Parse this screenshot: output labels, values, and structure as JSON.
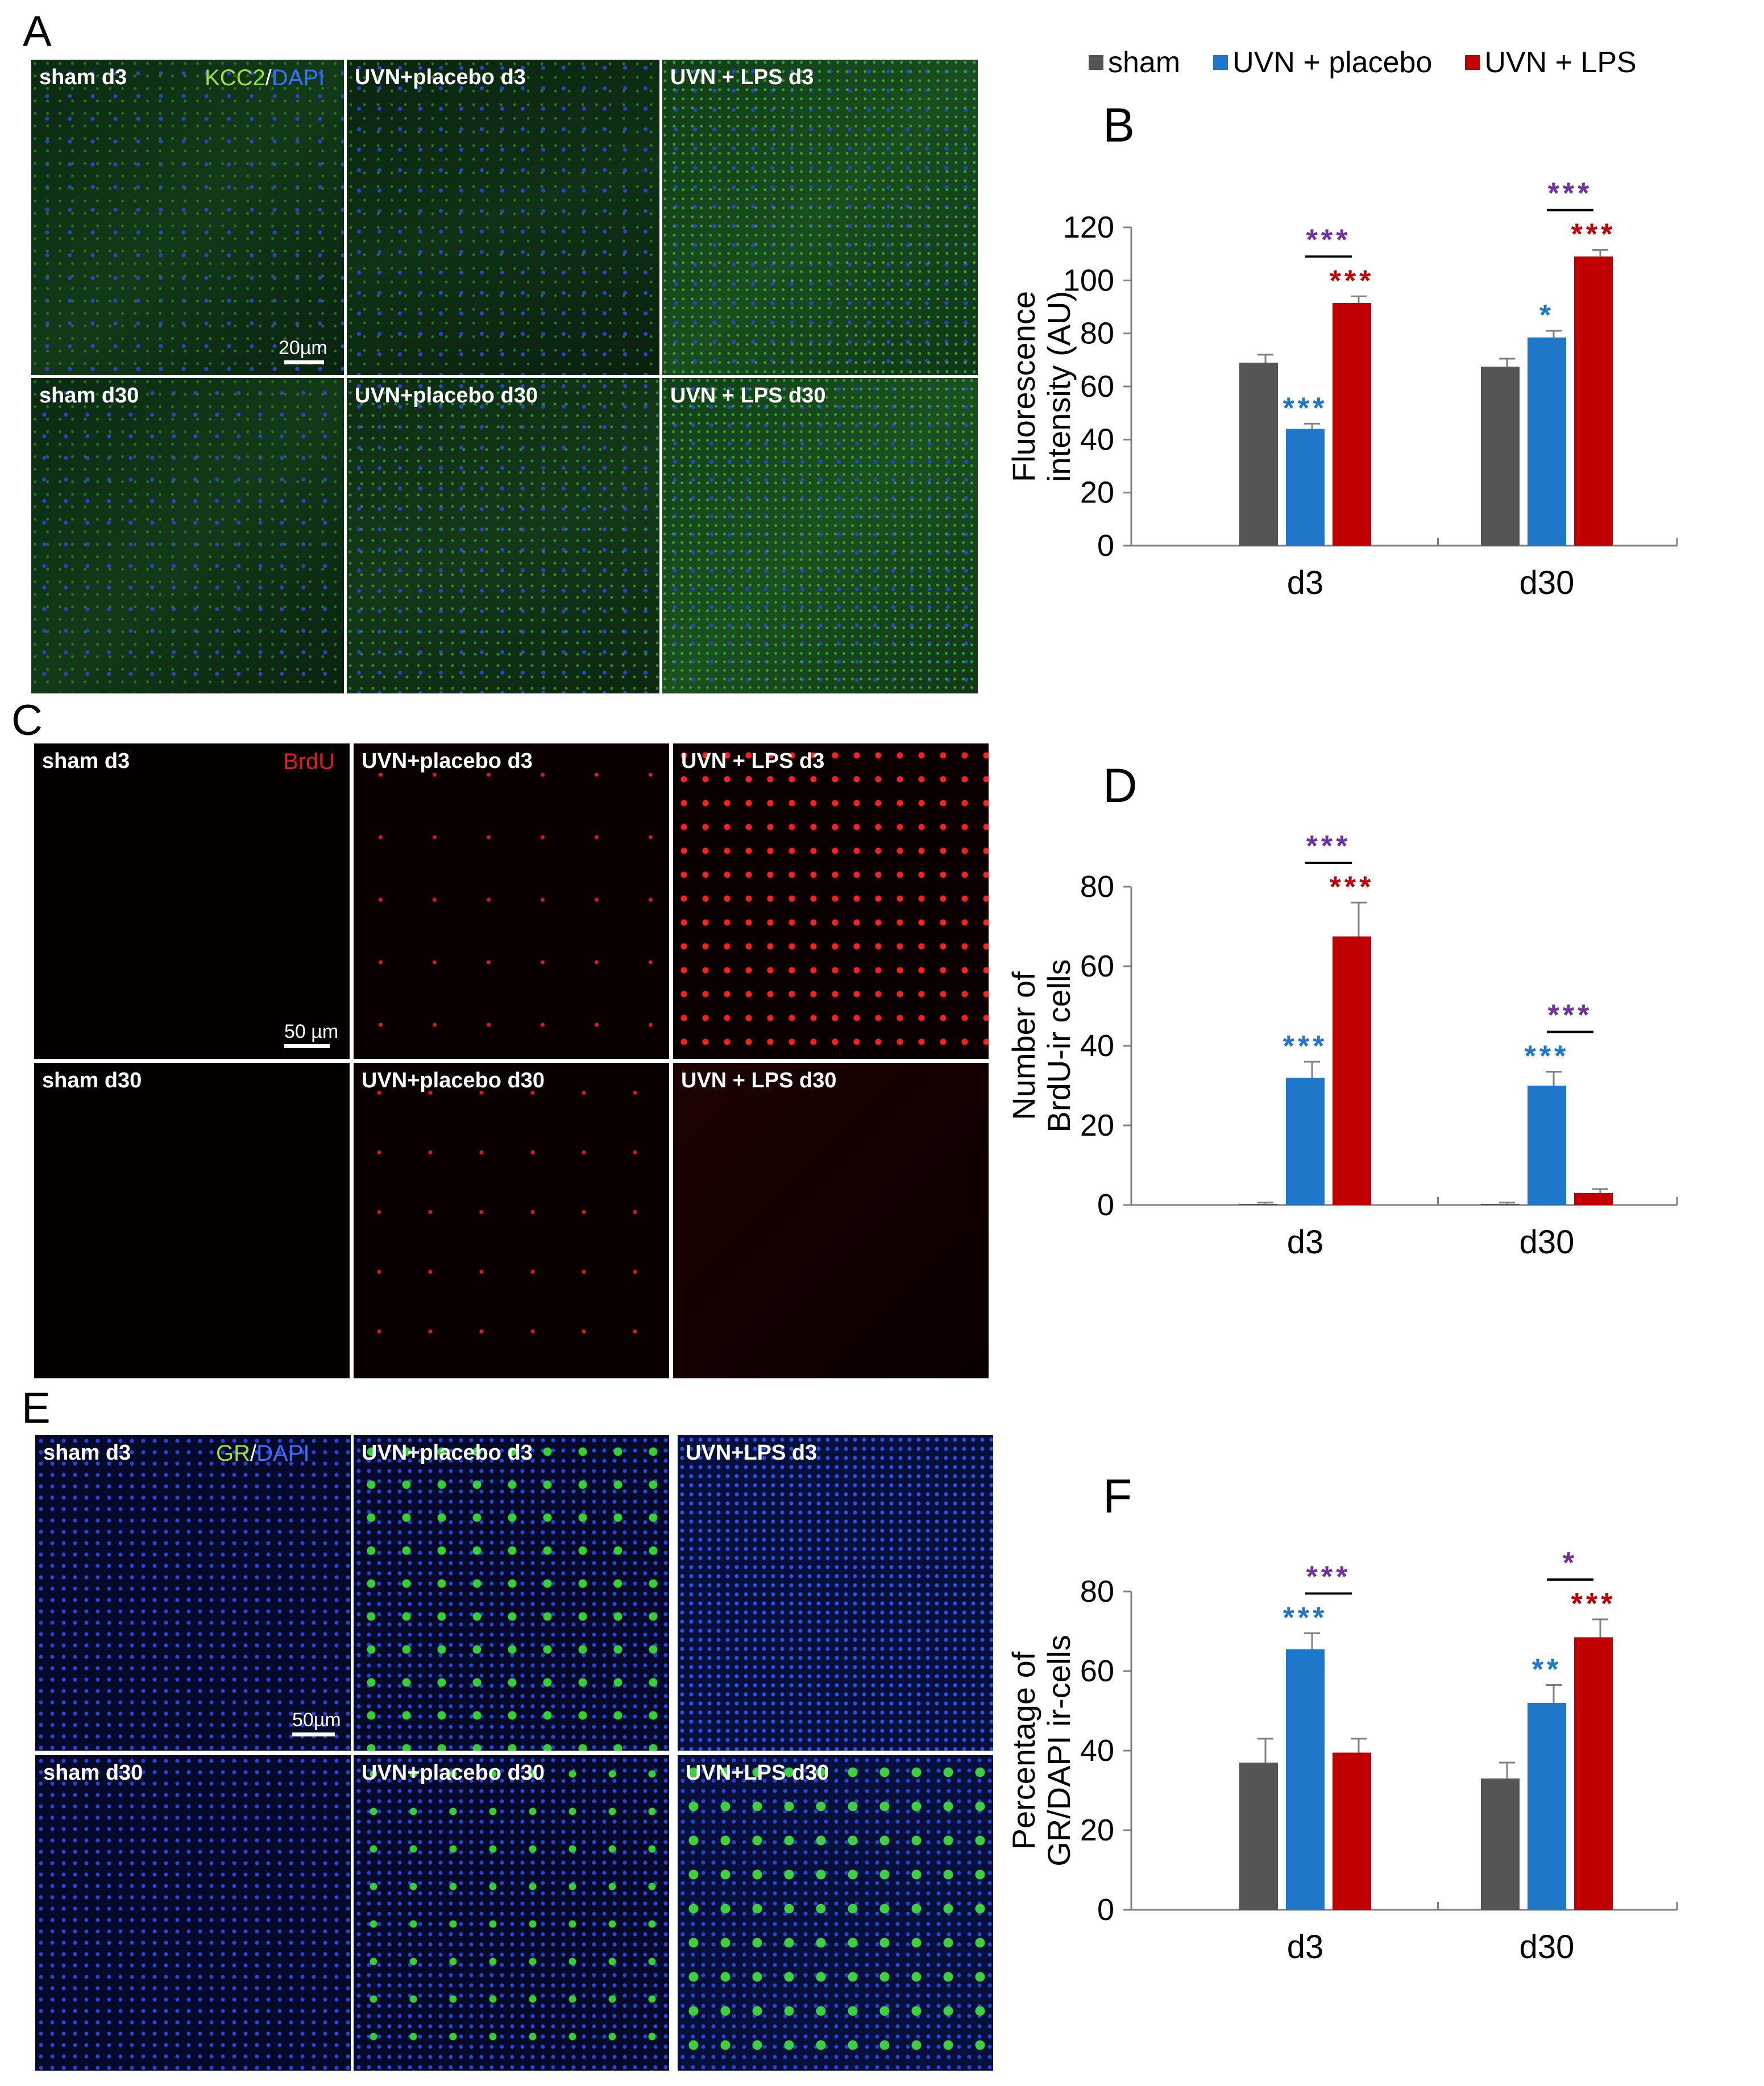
{
  "panel_letters": {
    "A": "A",
    "B": "B",
    "C": "C",
    "D": "D",
    "E": "E",
    "F": "F"
  },
  "colors": {
    "sham": "#555555",
    "placebo": "#1f77c9",
    "lps": "#c00000",
    "sig_purple": "#7030a0"
  },
  "legend": {
    "sham": "sham",
    "placebo": "UVN + placebo",
    "lps": "UVN + LPS"
  },
  "panel_a": {
    "stain_prefix": "KCC2",
    "stain_sep": "/",
    "stain_suffix": "DAPI",
    "scale": "20µm",
    "labels": [
      "sham d3",
      "UVN+placebo d3",
      "UVN + LPS d3",
      "sham d30",
      "UVN+placebo d30",
      "UVN + LPS d30"
    ]
  },
  "panel_c": {
    "stain": "BrdU",
    "scale": "50 µm",
    "labels": [
      "sham d3",
      "UVN+placebo d3",
      "UVN + LPS d3",
      "sham d30",
      "UVN+placebo d30",
      "UVN + LPS d30"
    ]
  },
  "panel_e": {
    "stain_prefix": "GR",
    "stain_sep": "/",
    "stain_suffix": "DAPI",
    "scale": "50µm",
    "labels": [
      "sham d3",
      "UVN+placebo d3",
      "UVN+LPS d3",
      "sham d30",
      "UVN+placebo d30",
      "UVN+LPS d30"
    ]
  },
  "chart_data": [
    {
      "id": "B",
      "type": "bar",
      "categories": [
        "d3",
        "d30"
      ],
      "ylabel": [
        "Fluorescence",
        "intensity (AU)"
      ],
      "ylim": [
        0,
        120
      ],
      "yticks": [
        0,
        20,
        40,
        60,
        80,
        100,
        120
      ],
      "series": [
        {
          "name": "sham",
          "values": [
            69,
            67.5
          ],
          "errors": [
            3,
            3
          ]
        },
        {
          "name": "UVN + placebo",
          "values": [
            44,
            78.5
          ],
          "errors": [
            2,
            2.5
          ]
        },
        {
          "name": "UVN + LPS",
          "values": [
            91.5,
            109
          ],
          "errors": [
            2.5,
            2.5
          ]
        }
      ],
      "bar_stars": [
        [
          "",
          "***",
          "***"
        ],
        [
          "",
          "*",
          "***"
        ]
      ],
      "brackets": [
        {
          "group": 0,
          "stars": "***"
        },
        {
          "group": 1,
          "stars": "***"
        }
      ]
    },
    {
      "id": "D",
      "type": "bar",
      "categories": [
        "d3",
        "d30"
      ],
      "ylabel": [
        "Number of",
        "BrdU-ir cells"
      ],
      "ylim": [
        0,
        80
      ],
      "yticks": [
        0,
        20,
        40,
        60,
        80
      ],
      "series": [
        {
          "name": "sham",
          "values": [
            0.3,
            0.3
          ],
          "errors": [
            0.3,
            0.3
          ]
        },
        {
          "name": "UVN + placebo",
          "values": [
            32,
            30
          ],
          "errors": [
            4,
            3.5
          ]
        },
        {
          "name": "UVN + LPS",
          "values": [
            67.5,
            3
          ],
          "errors": [
            8.5,
            1
          ]
        }
      ],
      "bar_stars": [
        [
          "",
          "***",
          "***"
        ],
        [
          "",
          "***",
          ""
        ]
      ],
      "brackets": [
        {
          "group": 0,
          "stars": "***"
        },
        {
          "group": 1,
          "stars": "***"
        }
      ]
    },
    {
      "id": "F",
      "type": "bar",
      "categories": [
        "d3",
        "d30"
      ],
      "ylabel": [
        "Percentage of",
        "GR/DAPI ir-cells"
      ],
      "ylim": [
        0,
        80
      ],
      "yticks": [
        0,
        20,
        40,
        60,
        80
      ],
      "series": [
        {
          "name": "sham",
          "values": [
            37,
            33
          ],
          "errors": [
            6,
            4
          ]
        },
        {
          "name": "UVN + placebo",
          "values": [
            65.5,
            52
          ],
          "errors": [
            4,
            4.5
          ]
        },
        {
          "name": "UVN + LPS",
          "values": [
            39.5,
            68.5
          ],
          "errors": [
            3.5,
            4.5
          ]
        }
      ],
      "bar_stars": [
        [
          "",
          "***",
          ""
        ],
        [
          "",
          "**",
          "***"
        ]
      ],
      "brackets": [
        {
          "group": 0,
          "stars": "***"
        },
        {
          "group": 1,
          "stars": "*"
        }
      ]
    }
  ]
}
